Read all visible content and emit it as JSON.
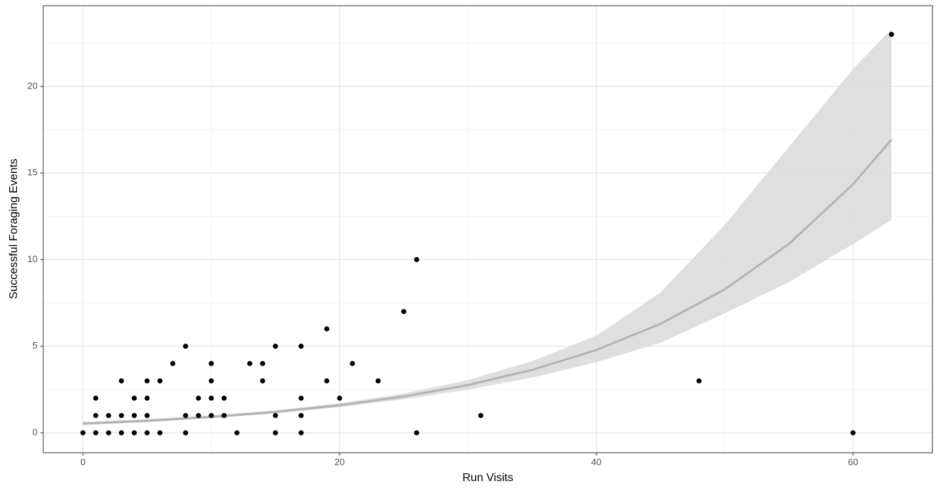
{
  "chart_data": {
    "type": "scatter",
    "x_label": "Run Visits",
    "y_label": "Successful Foraging Events",
    "xlim": [
      -3.09,
      66.19
    ],
    "ylim": [
      -1.15,
      24.66
    ],
    "xticks": [
      0,
      20,
      40,
      60
    ],
    "yticks": [
      0,
      5,
      10,
      15,
      20
    ],
    "xminor": [
      10,
      30,
      50
    ],
    "yminor": [
      2.5,
      7.5,
      12.5,
      17.5,
      22.5
    ],
    "grid": true,
    "points": {
      "color": "#000000",
      "x": [
        0,
        1,
        1,
        1,
        2,
        2,
        3,
        3,
        3,
        4,
        4,
        4,
        5,
        5,
        5,
        5,
        6,
        6,
        7,
        8,
        8,
        8,
        9,
        9,
        10,
        10,
        10,
        10,
        11,
        11,
        12,
        13,
        14,
        14,
        15,
        15,
        15,
        17,
        17,
        17,
        17,
        19,
        19,
        20,
        21,
        23,
        25,
        26,
        26,
        31,
        48,
        60,
        63
      ],
      "y": [
        0,
        0,
        1,
        2,
        0,
        1,
        0,
        1,
        3,
        0,
        1,
        2,
        0,
        1,
        2,
        3,
        0,
        3,
        4,
        0,
        1,
        5,
        1,
        2,
        1,
        2,
        3,
        4,
        1,
        2,
        0,
        4,
        3,
        4,
        0,
        1,
        5,
        0,
        1,
        2,
        5,
        3,
        6,
        2,
        4,
        3,
        7,
        0,
        10,
        1,
        3,
        0,
        23
      ]
    },
    "fit": {
      "color": "#b3b3b3",
      "band_color": "#d9d9d9",
      "x": [
        0,
        5,
        10,
        15,
        20,
        25,
        30,
        35,
        40,
        45,
        50,
        55,
        60,
        63
      ],
      "values": [
        0.53,
        0.698,
        0.918,
        1.209,
        1.591,
        2.095,
        2.757,
        3.63,
        4.78,
        6.29,
        8.28,
        10.9,
        14.35,
        16.93
      ],
      "lower": [
        0.447,
        0.613,
        0.839,
        1.127,
        1.483,
        1.934,
        2.495,
        3.188,
        4.073,
        5.2,
        6.9,
        8.7,
        10.9,
        12.29
      ],
      "upper": [
        0.628,
        0.795,
        1.004,
        1.297,
        1.706,
        2.269,
        3.047,
        4.134,
        5.61,
        8.1,
        12.0,
        16.5,
        21.0,
        23.31
      ]
    }
  }
}
